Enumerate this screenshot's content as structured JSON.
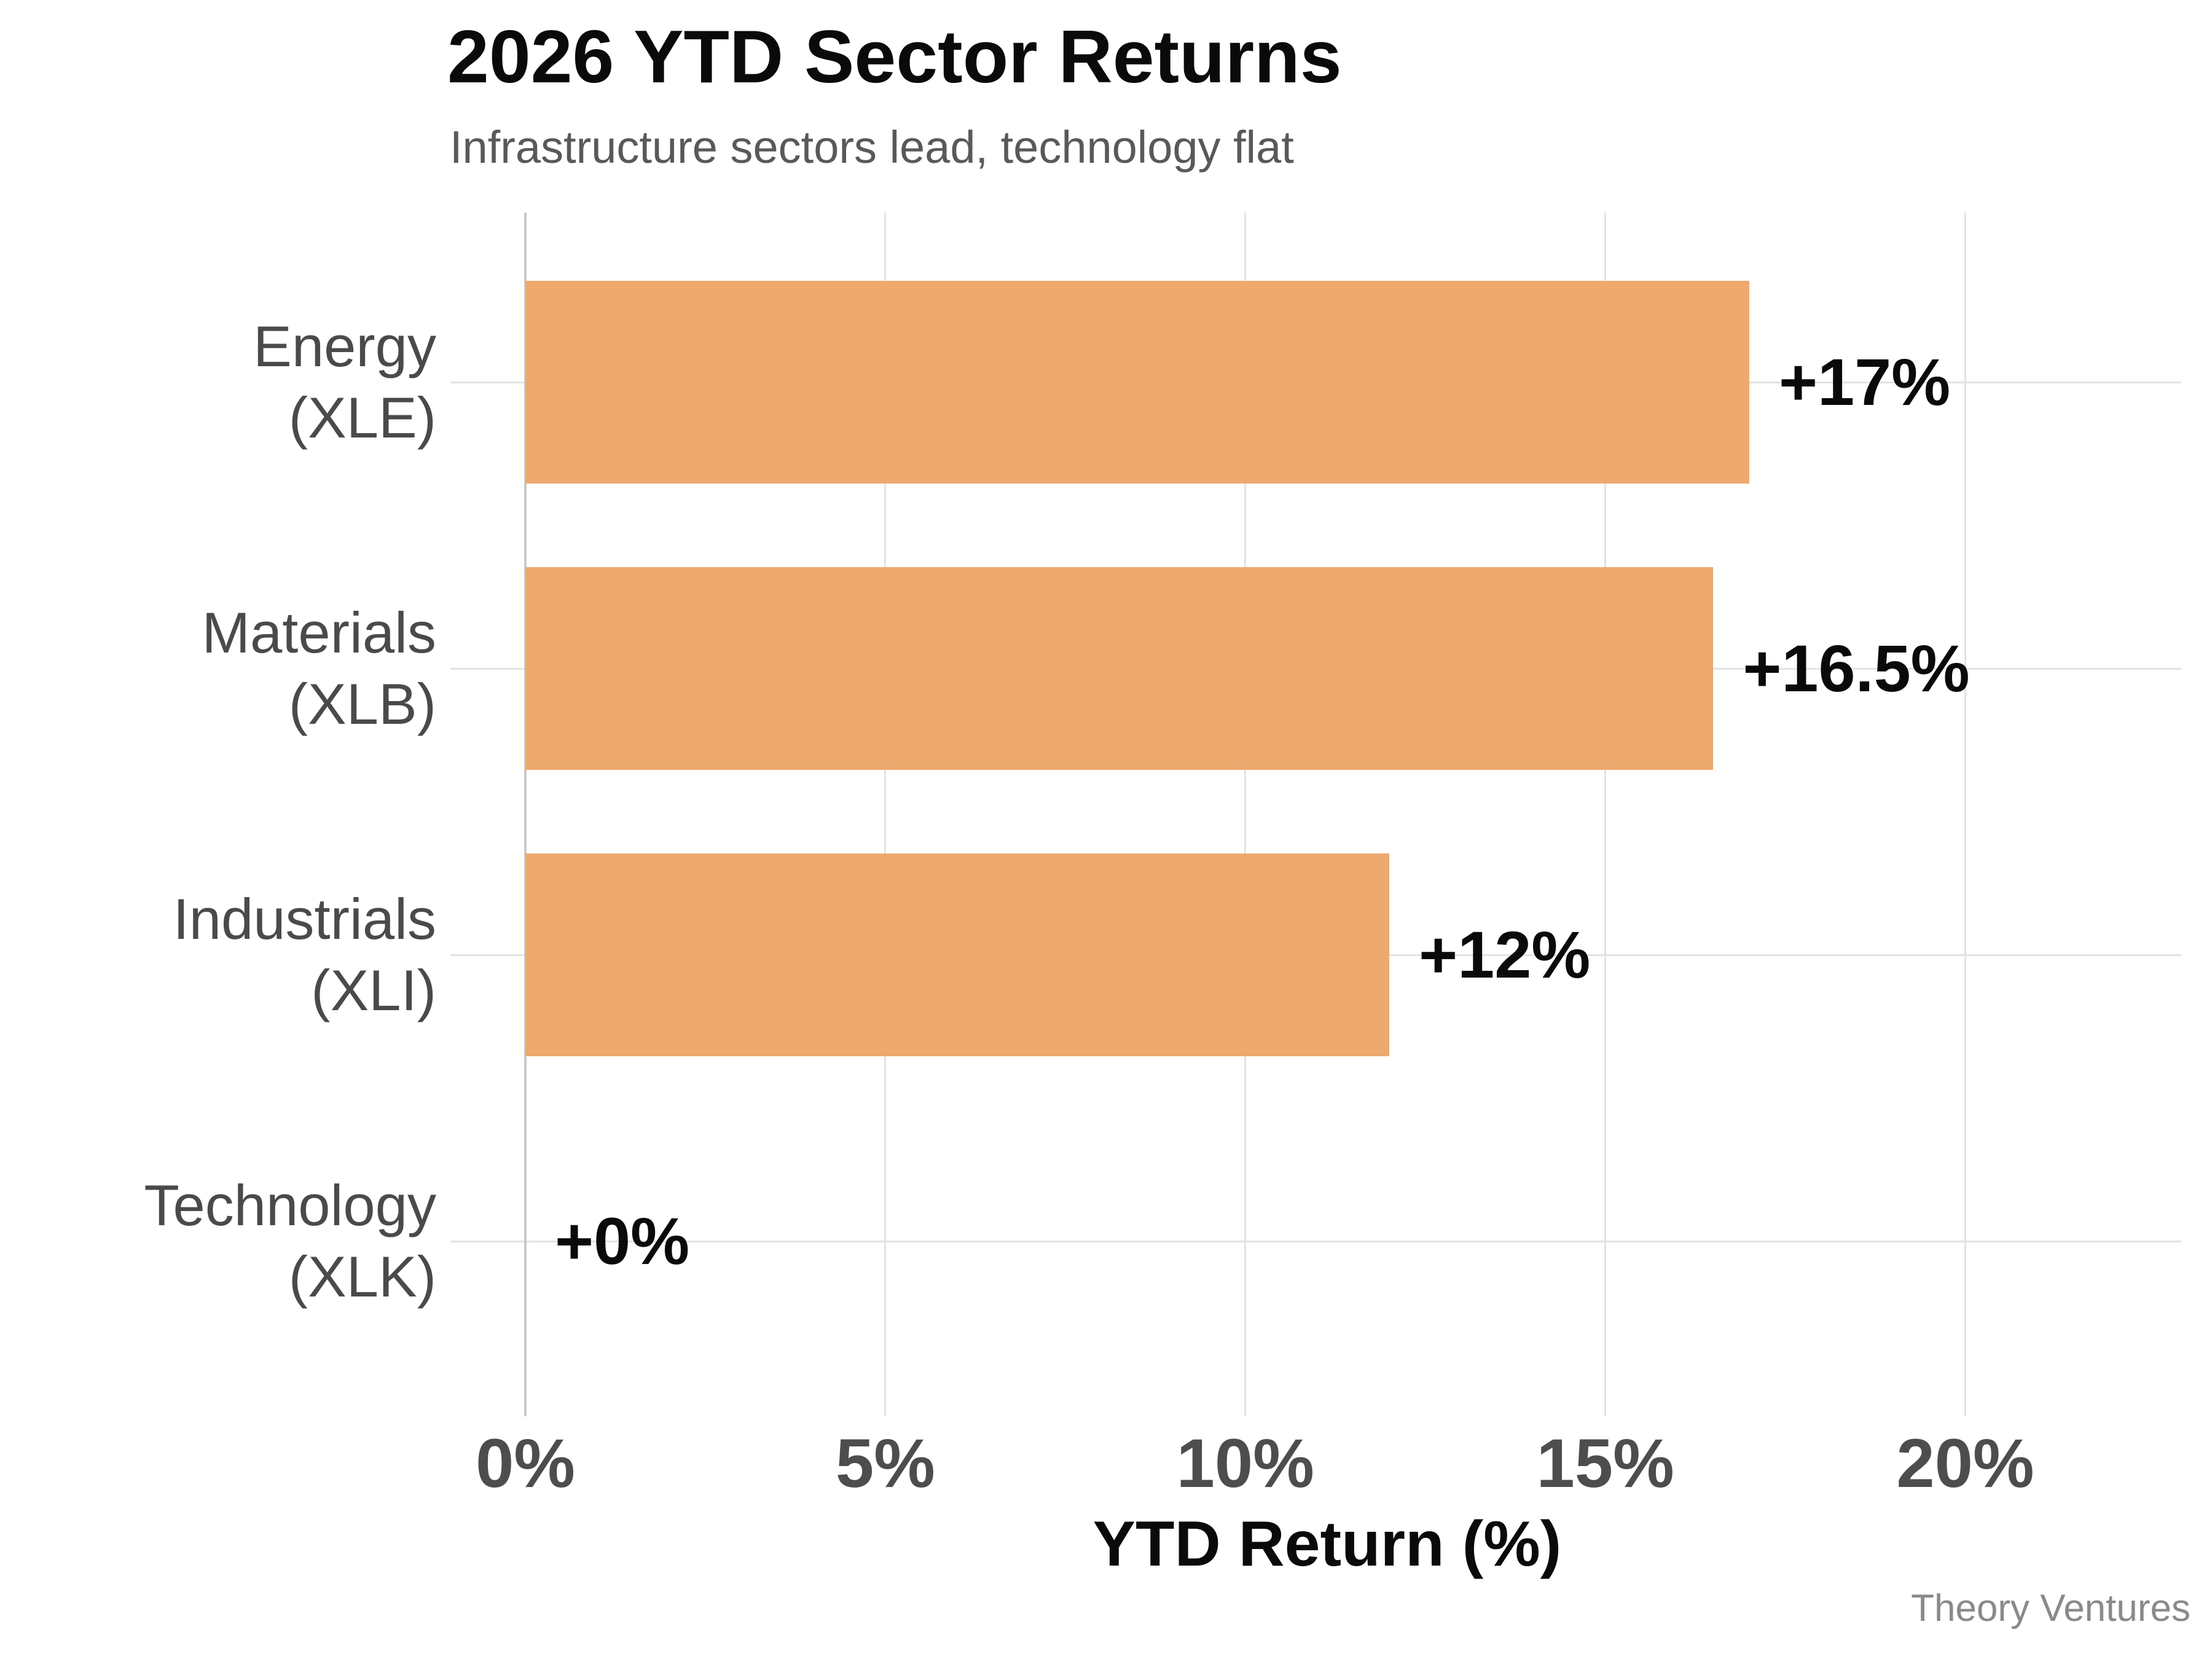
{
  "header": {
    "title": "2026 YTD Sector Returns",
    "subtitle": "Infrastructure sectors lead, technology flat"
  },
  "footer": {
    "source": "Theory Ventures"
  },
  "chart_data": {
    "type": "bar",
    "orientation": "horizontal",
    "title": "2026 YTD Sector Returns",
    "subtitle": "Infrastructure sectors lead, technology flat",
    "xlabel": "YTD Return (%)",
    "ylabel": "",
    "xlim": [
      0,
      23
    ],
    "grid": true,
    "bar_color": "#EDA96E",
    "gridline_color": "#e3e3e3",
    "spine_color": "#c9c9c9",
    "rows": [
      {
        "sector": "Energy",
        "ticker": "(XLE)",
        "value": 17,
        "value_label": "+17%"
      },
      {
        "sector": "Materials",
        "ticker": "(XLB)",
        "value": 16.5,
        "value_label": "+16.5%"
      },
      {
        "sector": "Industrials",
        "ticker": "(XLI)",
        "value": 12,
        "value_label": "+12%"
      },
      {
        "sector": "Technology",
        "ticker": "(XLK)",
        "value": 0,
        "value_label": "+0%"
      }
    ],
    "x_ticks": [
      {
        "value": 0,
        "label": "0%"
      },
      {
        "value": 5,
        "label": "5%"
      },
      {
        "value": 10,
        "label": "10%"
      },
      {
        "value": 15,
        "label": "15%"
      },
      {
        "value": 20,
        "label": "20%"
      }
    ],
    "source": "Theory Ventures"
  }
}
